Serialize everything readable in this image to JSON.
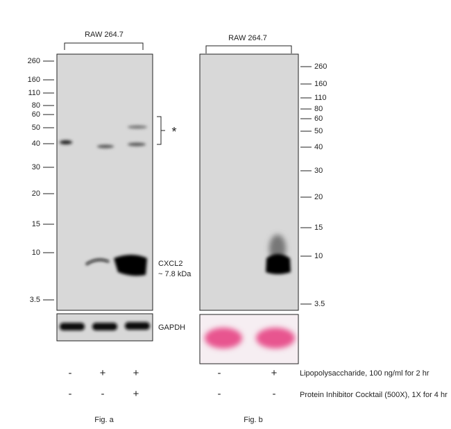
{
  "panel_a": {
    "header": "RAW 264.7",
    "markers": [
      "260",
      "160",
      "110",
      "80",
      "60",
      "50",
      "40",
      "30",
      "20",
      "15",
      "10",
      "3.5"
    ],
    "annotation": "*",
    "band_label": [
      "CXCL2",
      "~ 7.8 kDa"
    ],
    "loading_label": "GAPDH",
    "lanes": [
      [
        "-",
        "+",
        "+"
      ],
      [
        "-",
        "-",
        "+"
      ]
    ],
    "caption": "Fig. a"
  },
  "panel_b": {
    "header": "RAW 264.7",
    "markers": [
      "260",
      "160",
      "110",
      "80",
      "60",
      "50",
      "40",
      "30",
      "20",
      "15",
      "10",
      "3.5"
    ],
    "lanes": [
      [
        "-",
        "+"
      ],
      [
        "-",
        "-"
      ]
    ],
    "caption": "Fig. b"
  },
  "treatments": [
    "Lipopolysaccharide, 100 ng/ml for 2 hr",
    "Protein Inhibitor Cocktail (500X), 1X for 4 hr"
  ]
}
